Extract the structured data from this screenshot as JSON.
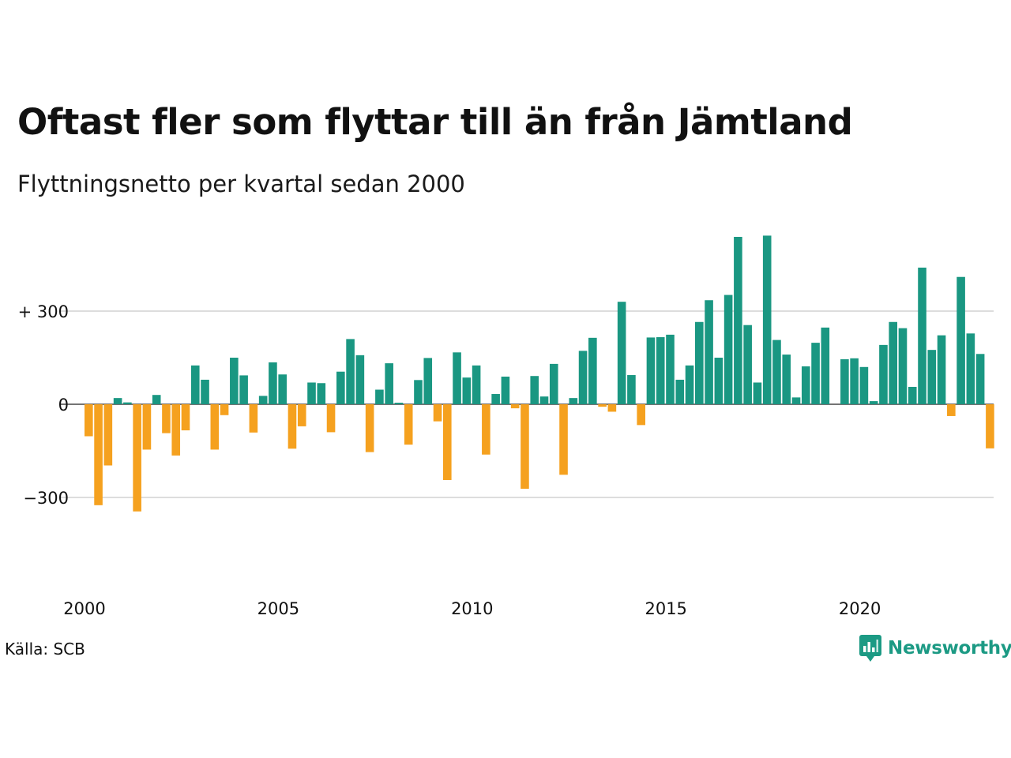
{
  "header": {
    "title": "Oftast fler som flyttar till än från Jämtland",
    "subtitle": "Flyttningsnetto per kvartal sedan 2000"
  },
  "footer": {
    "source": "Källa: SCB",
    "brand": "Newsworthy"
  },
  "colors": {
    "positive": "#1a9782",
    "negative": "#f5a11f",
    "grid": "#dddddd",
    "brand": "#1c9a84"
  },
  "chart_data": {
    "type": "bar",
    "title": "Oftast fler som flyttar till än från Jämtland",
    "subtitle": "Flyttningsnetto per kvartal sedan 2000",
    "xlabel": "",
    "ylabel": "",
    "ylim": [
      -360,
      560
    ],
    "yticks": [
      {
        "value": 300,
        "label": "+ 300"
      },
      {
        "value": 0,
        "label": "0"
      },
      {
        "value": -300,
        "label": "−300"
      }
    ],
    "xticks": [
      {
        "year": 2000,
        "label": "2000"
      },
      {
        "year": 2005,
        "label": "2005"
      },
      {
        "year": 2010,
        "label": "2010"
      },
      {
        "year": 2015,
        "label": "2015"
      },
      {
        "year": 2020,
        "label": "2020"
      }
    ],
    "grid": true,
    "legend": "none",
    "start_year": 2000,
    "categories": [
      "2000 K1",
      "2000 K2",
      "2000 K3",
      "2000 K4",
      "2001 K1",
      "2001 K2",
      "2001 K3",
      "2001 K4",
      "2002 K1",
      "2002 K2",
      "2002 K3",
      "2002 K4",
      "2003 K1",
      "2003 K2",
      "2003 K3",
      "2003 K4",
      "2004 K1",
      "2004 K2",
      "2004 K3",
      "2004 K4",
      "2005 K1",
      "2005 K2",
      "2005 K3",
      "2005 K4",
      "2006 K1",
      "2006 K2",
      "2006 K3",
      "2006 K4",
      "2007 K1",
      "2007 K2",
      "2007 K3",
      "2007 K4",
      "2008 K1",
      "2008 K2",
      "2008 K3",
      "2008 K4",
      "2009 K1",
      "2009 K2",
      "2009 K3",
      "2009 K4",
      "2010 K1",
      "2010 K2",
      "2010 K3",
      "2010 K4",
      "2011 K1",
      "2011 K2",
      "2011 K3",
      "2011 K4",
      "2012 K1",
      "2012 K2",
      "2012 K3",
      "2012 K4",
      "2013 K1",
      "2013 K2",
      "2013 K3",
      "2013 K4",
      "2014 K1",
      "2014 K2",
      "2014 K3",
      "2014 K4",
      "2015 K1",
      "2015 K2",
      "2015 K3",
      "2015 K4",
      "2016 K1",
      "2016 K2",
      "2016 K3",
      "2016 K4",
      "2017 K1",
      "2017 K2",
      "2017 K3",
      "2017 K4",
      "2018 K1",
      "2018 K2",
      "2018 K3",
      "2018 K4",
      "2019 K1",
      "2019 K2",
      "2019 K3",
      "2019 K4",
      "2020 K1",
      "2020 K2",
      "2020 K3",
      "2020 K4",
      "2021 K1",
      "2021 K2",
      "2021 K3",
      "2021 K4",
      "2022 K1",
      "2022 K2",
      "2022 K3",
      "2022 K4",
      "2023 K1",
      "2023 K2",
      "2023 K3",
      "2023 K4"
    ],
    "values": [
      -103,
      -325,
      -197,
      20,
      6,
      -345,
      -146,
      30,
      -93,
      -165,
      -84,
      125,
      79,
      -146,
      -35,
      150,
      93,
      -91,
      27,
      135,
      96,
      -143,
      -71,
      70,
      68,
      -90,
      105,
      210,
      158,
      -154,
      47,
      132,
      5,
      -130,
      78,
      149,
      -55,
      -244,
      167,
      86,
      125,
      -162,
      33,
      89,
      -13,
      -272,
      91,
      25,
      130,
      -227,
      20,
      172,
      214,
      -8,
      -24,
      330,
      94,
      -67,
      215,
      216,
      224,
      79,
      125,
      265,
      335,
      150,
      352,
      539,
      255,
      70,
      543,
      207,
      160,
      22,
      122,
      198,
      247,
      0,
      145,
      148,
      120,
      10,
      191,
      265,
      245,
      56,
      440,
      175,
      222,
      -38,
      410,
      228,
      162,
      -142,
      0,
      0
    ]
  }
}
